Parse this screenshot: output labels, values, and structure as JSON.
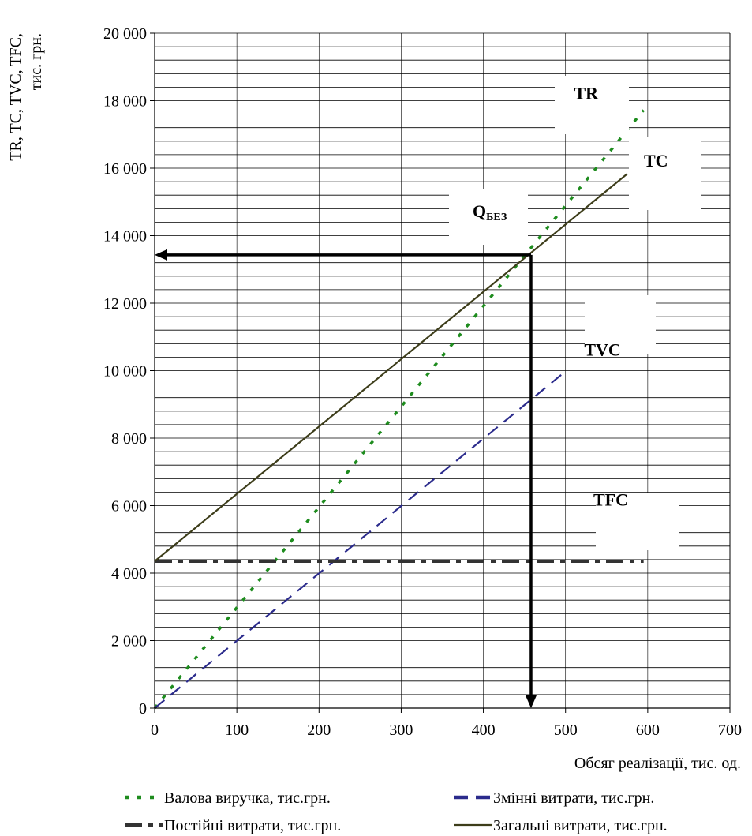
{
  "chart_data": {
    "type": "line",
    "xlabel": "Обсяг реалізації, тис. од.",
    "ylabel_line1": "TR, TC, TVC, TFC,",
    "ylabel_line2": "тис. грн.",
    "xlim": [
      0,
      700
    ],
    "ylim": [
      0,
      20000
    ],
    "x_ticks": [
      0,
      100,
      200,
      300,
      400,
      500,
      600,
      700
    ],
    "x_tick_labels": [
      "0",
      "100",
      "200",
      "300",
      "400",
      "500",
      "600",
      "700"
    ],
    "y_ticks": [
      0,
      2000,
      4000,
      6000,
      8000,
      10000,
      12000,
      14000,
      16000,
      18000,
      20000
    ],
    "y_tick_labels": [
      "0",
      "2 000",
      "4 000",
      "6 000",
      "8 000",
      "10 000",
      "12 000",
      "14 000",
      "16 000",
      "18 000",
      "20 000"
    ],
    "grid": "horizontal",
    "legend_position": "bottom",
    "series": [
      {
        "name": "Валова виручка, тис.грн.",
        "key": "TR",
        "color": "#1e8c1e",
        "style": "dotted",
        "x": [
          0,
          595
        ],
        "y": [
          0,
          17720
        ]
      },
      {
        "name": "Змінні витрати, тис.грн.",
        "key": "TVC",
        "color": "#2b2b8c",
        "style": "dashed",
        "x": [
          0,
          500
        ],
        "y": [
          0,
          9980
        ]
      },
      {
        "name": "Постійні витрати, тис.грн.",
        "key": "TFC",
        "color": "#333333",
        "style": "dashdot",
        "x": [
          0,
          595
        ],
        "y": [
          4350,
          4350
        ]
      },
      {
        "name": "Загальні витрати, тис.грн.",
        "key": "TC",
        "color": "#3d3d1a",
        "style": "solid",
        "x": [
          0,
          575
        ],
        "y": [
          4350,
          15830
        ]
      }
    ],
    "breakeven": {
      "x": 458,
      "y": 13430,
      "label_main": "Q",
      "label_sub": "БЕЗ"
    },
    "annotations": [
      {
        "text": "TR",
        "x": 525,
        "y": 18050
      },
      {
        "text": "TC",
        "x": 610,
        "y": 16050
      },
      {
        "text": "TVC",
        "x": 545,
        "y": 10450
      },
      {
        "text": "TFC",
        "x": 555,
        "y": 6000
      }
    ]
  }
}
